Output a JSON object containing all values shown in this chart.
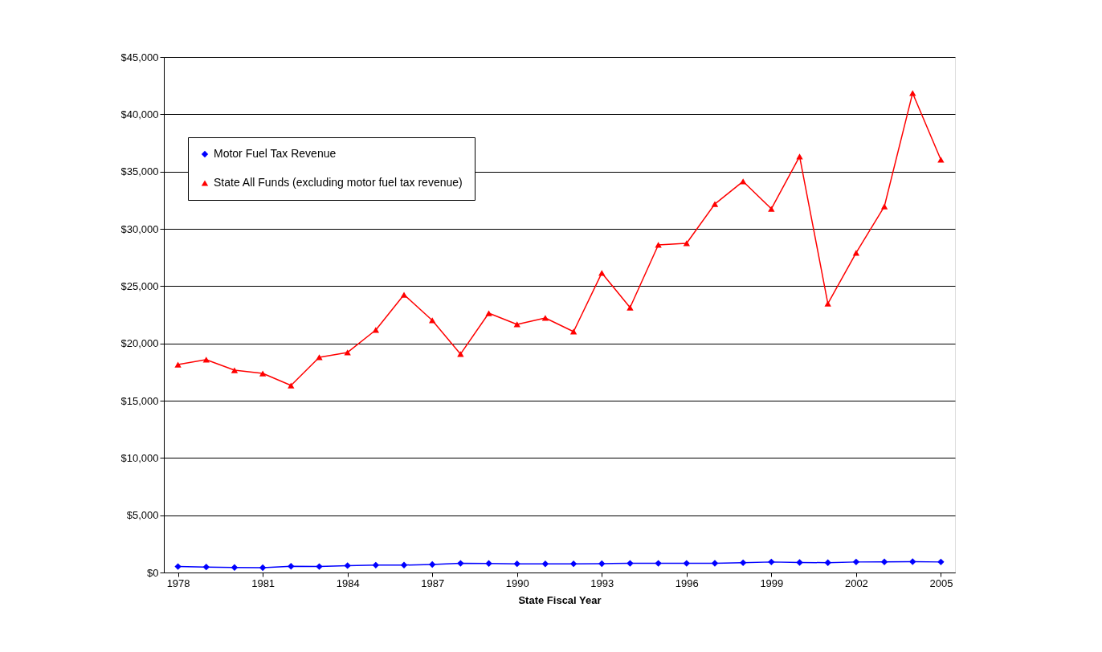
{
  "chart_data": {
    "type": "line",
    "xlabel": "State Fiscal Year",
    "x": [
      1978,
      1979,
      1980,
      1981,
      1982,
      1983,
      1984,
      1985,
      1986,
      1987,
      1988,
      1989,
      1990,
      1991,
      1992,
      1993,
      1994,
      1995,
      1996,
      1997,
      1998,
      1999,
      2000,
      2001,
      2002,
      2003,
      2004,
      2005
    ],
    "series": [
      {
        "name": "Motor Fuel Tax Revenue",
        "color": "#0000ff",
        "marker": "diamond",
        "values": [
          520,
          480,
          440,
          420,
          540,
          520,
          600,
          640,
          650,
          700,
          800,
          790,
          760,
          750,
          760,
          770,
          800,
          800,
          800,
          810,
          850,
          920,
          880,
          860,
          920,
          930,
          950,
          920
        ]
      },
      {
        "name": "State All Funds (excluding motor fuel tax revenue)",
        "color": "#ff0000",
        "marker": "triangle",
        "values": [
          18150,
          18580,
          17660,
          17380,
          16330,
          18790,
          19210,
          21170,
          24250,
          22010,
          19070,
          22640,
          21660,
          22220,
          21030,
          26150,
          23130,
          28600,
          28740,
          32170,
          34140,
          31750,
          36310,
          23480,
          27900,
          31960,
          41850,
          36030
        ]
      }
    ],
    "xlim": [
      1977.5,
      2005.5
    ],
    "xticks": [
      1978,
      1981,
      1984,
      1987,
      1990,
      1993,
      1996,
      1999,
      2002,
      2005
    ],
    "ylim": [
      0,
      45000
    ],
    "yticks": [
      {
        "value": 0,
        "label": "$0"
      },
      {
        "value": 5000,
        "label": "$5,000"
      },
      {
        "value": 10000,
        "label": "$10,000"
      },
      {
        "value": 15000,
        "label": "$15,000"
      },
      {
        "value": 20000,
        "label": "$20,000"
      },
      {
        "value": 25000,
        "label": "$25,000"
      },
      {
        "value": 30000,
        "label": "$30,000"
      },
      {
        "value": 35000,
        "label": "$35,000"
      },
      {
        "value": 40000,
        "label": "$40,000"
      },
      {
        "value": 45000,
        "label": "$45,000"
      }
    ],
    "grid": "y",
    "legend": "top left",
    "line_style": "solid"
  }
}
